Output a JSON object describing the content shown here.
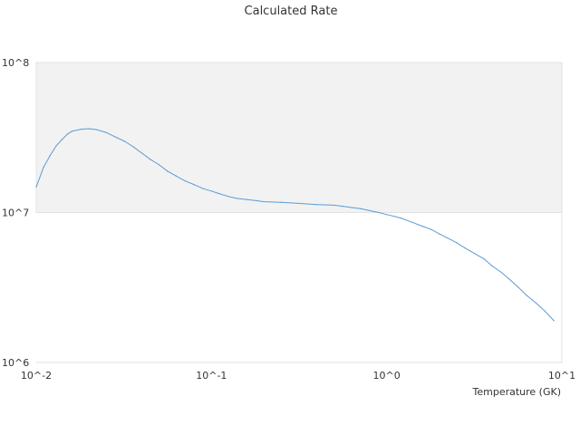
{
  "chart_data": {
    "type": "line",
    "title": "Calculated Rate",
    "xlabel": "Temperature (GK)",
    "ylabel": "",
    "x_scale": "log",
    "y_scale": "log",
    "xlim": [
      0.01,
      10
    ],
    "ylim": [
      1000000,
      100000000
    ],
    "x_tick_labels": [
      "10^-2",
      "10^-1",
      "10^0",
      "10^1"
    ],
    "y_tick_labels": [
      "10^6",
      "10^7",
      "10^8"
    ],
    "shaded_band": {
      "y_from": 10000000,
      "y_to": 100000000,
      "color": "#f2f2f2"
    },
    "grid": false,
    "legend": "none",
    "series": [
      {
        "color": "#5b9bd5",
        "x": [
          0.01,
          0.011,
          0.012,
          0.013,
          0.014,
          0.015,
          0.016,
          0.018,
          0.02,
          0.022,
          0.025,
          0.028,
          0.032,
          0.036,
          0.04,
          0.045,
          0.05,
          0.056,
          0.063,
          0.071,
          0.08,
          0.09,
          0.1,
          0.11,
          0.125,
          0.14,
          0.16,
          0.18,
          0.2,
          0.25,
          0.32,
          0.4,
          0.5,
          0.56,
          0.63,
          0.71,
          0.8,
          0.9,
          1.0,
          1.2,
          1.4,
          1.6,
          1.8,
          2.0,
          2.2,
          2.5,
          2.8,
          3.2,
          3.6,
          4.0,
          4.5,
          5.0,
          5.6,
          6.3,
          7.1,
          8.0,
          9.0
        ],
        "y": [
          14800000,
          20000000,
          24000000,
          27800000,
          30600000,
          33200000,
          34900000,
          35900000,
          36200000,
          35700000,
          34200000,
          32100000,
          29800000,
          27300000,
          24900000,
          22500000,
          20900000,
          18900000,
          17500000,
          16200000,
          15300000,
          14400000,
          13900000,
          13400000,
          12800000,
          12400000,
          12200000,
          12000000,
          11800000,
          11700000,
          11500000,
          11300000,
          11200000,
          11000000,
          10800000,
          10600000,
          10300000,
          10000000,
          9700000,
          9200000,
          8600000,
          8100000,
          7700000,
          7200000,
          6800000,
          6300000,
          5800000,
          5300000,
          4900000,
          4400000,
          4000000,
          3600000,
          3200000,
          2800000,
          2500000,
          2200000,
          1900000
        ]
      }
    ]
  }
}
